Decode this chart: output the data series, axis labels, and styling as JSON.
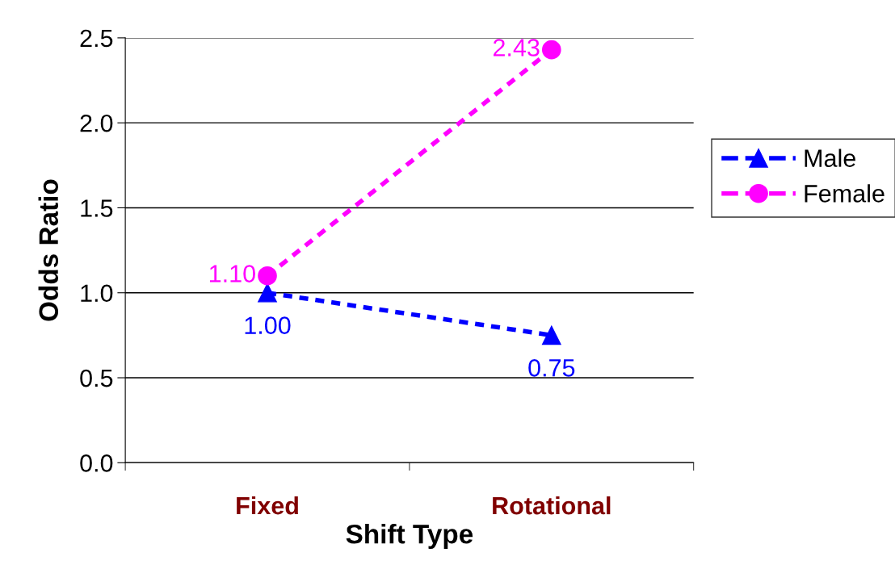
{
  "chart_data": {
    "type": "line",
    "xlabel": "Shift Type",
    "ylabel": "Odds Ratio",
    "categories": [
      "Fixed",
      "Rotational"
    ],
    "series": [
      {
        "name": "Male",
        "color": "#0000ff",
        "values": [
          1.0,
          0.75
        ],
        "marker": "triangle",
        "value_labels": [
          "1.00",
          "0.75"
        ]
      },
      {
        "name": "Female",
        "color": "#ff00ff",
        "values": [
          1.1,
          2.43
        ],
        "marker": "circle",
        "value_labels": [
          "1.10",
          "2.43"
        ]
      }
    ],
    "ylim": [
      0,
      2.5
    ],
    "yticks": [
      {
        "value": 0,
        "label": "0.0"
      },
      {
        "value": 0.5,
        "label": "0.5"
      },
      {
        "value": 1,
        "label": "1.0"
      },
      {
        "value": 1.5,
        "label": "1.5"
      },
      {
        "value": 2,
        "label": "2.0"
      },
      {
        "value": 2.5,
        "label": "2.5"
      }
    ],
    "grid": "y",
    "legend": "right",
    "line_style": "dashed"
  }
}
